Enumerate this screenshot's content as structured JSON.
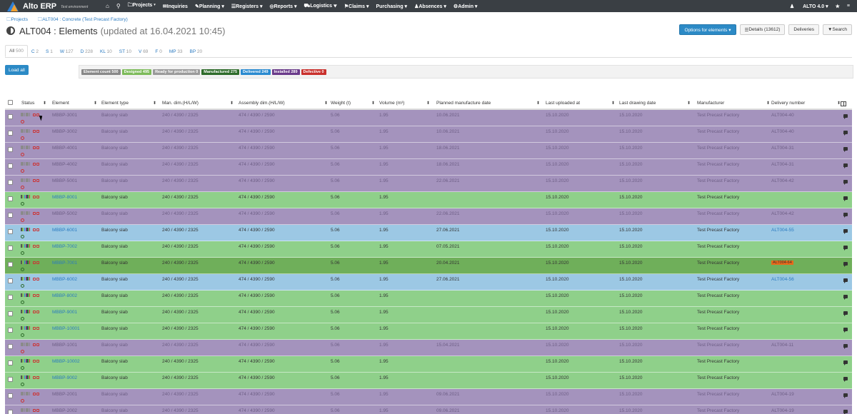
{
  "navbar": {
    "brand": "Alto ERP",
    "env": "Test environment",
    "items": [
      "Projects",
      "Inquiries",
      "Planning",
      "Registers",
      "Reports",
      "Logistics",
      "Claims",
      "Purchasing",
      "Absences",
      "Admin"
    ],
    "user": "ALTO 4.0"
  },
  "breadcrumb": {
    "projects": "Projects",
    "current": "ALT004 : Concrete (Test Precast Factory)"
  },
  "title": {
    "main": "ALT004 : Elements",
    "sub": "(updated at 16.04.2021 10:45)"
  },
  "actions": {
    "options": "Options for elements ▾",
    "details": "Details (13612)",
    "deliveries": "Deliveries",
    "search": "Search"
  },
  "tabs": [
    {
      "label": "All",
      "count": "500"
    },
    {
      "label": "C",
      "count": "2"
    },
    {
      "label": "S",
      "count": "1"
    },
    {
      "label": "W",
      "count": "127"
    },
    {
      "label": "D",
      "count": "228"
    },
    {
      "label": "KL",
      "count": "10"
    },
    {
      "label": "ST",
      "count": "10"
    },
    {
      "label": "V",
      "count": "69"
    },
    {
      "label": "F",
      "count": "0"
    },
    {
      "label": "MP",
      "count": "33"
    },
    {
      "label": "BP",
      "count": "20"
    }
  ],
  "load_all": "Load all",
  "summary_badges": [
    {
      "label": "Element count 500",
      "color": "#888888"
    },
    {
      "label": "Designed 495",
      "color": "#7dbb5a"
    },
    {
      "label": "Ready for production 0",
      "color": "#9a9a9a"
    },
    {
      "label": "Manufactured 275",
      "color": "#2e6b2a"
    },
    {
      "label": "Delivered 249",
      "color": "#2a8ad0"
    },
    {
      "label": "Installed 289",
      "color": "#6a3a8a"
    },
    {
      "label": "Defective 0",
      "color": "#c9302c"
    }
  ],
  "columns": [
    "Status",
    "Element",
    "Element type",
    "Man. dim.(H/L/W)",
    "Assembly dim.(H/L/W)",
    "Weight (t)",
    "Volume (m³)",
    "Planned manufacture date",
    "Last uploaded at",
    "Last drawing date",
    "Manufacturer",
    "Delivery number"
  ],
  "colors": {
    "purple": "#a493bd",
    "green": "#8fd08a",
    "blue": "#9cc8e4",
    "darkgreen": "#6faf5a"
  },
  "rows": [
    {
      "element": "MBBP-3001",
      "type": "Balcony slab",
      "man": "240 / 4390 / 2325",
      "asm": "474 / 4390 / 2590",
      "weight": "5.06",
      "volume": "1.95",
      "planned": "10.06.2021",
      "uploaded": "15.10.2020",
      "drawing": "15.10.2020",
      "manufacturer": "Test Precast Factory",
      "delivery": "ALT004-40",
      "bg": "purple"
    },
    {
      "element": "MBBP-3002",
      "type": "Balcony slab",
      "man": "240 / 4390 / 2325",
      "asm": "474 / 4390 / 2590",
      "weight": "5.06",
      "volume": "1.95",
      "planned": "10.06.2021",
      "uploaded": "15.10.2020",
      "drawing": "15.10.2020",
      "manufacturer": "Test Precast Factory",
      "delivery": "ALT004-40",
      "bg": "purple"
    },
    {
      "element": "MBBP-4001",
      "type": "Balcony slab",
      "man": "240 / 4390 / 2325",
      "asm": "474 / 4390 / 2590",
      "weight": "5.06",
      "volume": "1.95",
      "planned": "18.06.2021",
      "uploaded": "15.10.2020",
      "drawing": "15.10.2020",
      "manufacturer": "Test Precast Factory",
      "delivery": "ALT004-31",
      "bg": "purple"
    },
    {
      "element": "MBBP-4002",
      "type": "Balcony slab",
      "man": "240 / 4390 / 2325",
      "asm": "474 / 4390 / 2590",
      "weight": "5.06",
      "volume": "1.95",
      "planned": "18.06.2021",
      "uploaded": "15.10.2020",
      "drawing": "15.10.2020",
      "manufacturer": "Test Precast Factory",
      "delivery": "ALT004-31",
      "bg": "purple"
    },
    {
      "element": "MBBP-5001",
      "type": "Balcony slab",
      "man": "240 / 4390 / 2325",
      "asm": "474 / 4390 / 2590",
      "weight": "5.06",
      "volume": "1.95",
      "planned": "22.06.2021",
      "uploaded": "15.10.2020",
      "drawing": "15.10.2020",
      "manufacturer": "Test Precast Factory",
      "delivery": "ALT004-42",
      "bg": "purple"
    },
    {
      "element": "MBBP-8001",
      "type": "Balcony slab",
      "man": "240 / 4390 / 2325",
      "asm": "474 / 4390 / 2590",
      "weight": "5.06",
      "volume": "1.95",
      "planned": "",
      "uploaded": "15.10.2020",
      "drawing": "15.10.2020",
      "manufacturer": "Test Precast Factory",
      "delivery": "",
      "bg": "green",
      "link": true
    },
    {
      "element": "MBBP-5002",
      "type": "Balcony slab",
      "man": "240 / 4390 / 2325",
      "asm": "474 / 4390 / 2590",
      "weight": "5.06",
      "volume": "1.95",
      "planned": "22.06.2021",
      "uploaded": "15.10.2020",
      "drawing": "15.10.2020",
      "manufacturer": "Test Precast Factory",
      "delivery": "ALT004-42",
      "bg": "purple"
    },
    {
      "element": "MBBP-6001",
      "type": "Balcony slab",
      "man": "240 / 4390 / 2325",
      "asm": "474 / 4390 / 2590",
      "weight": "5.06",
      "volume": "1.95",
      "planned": "27.06.2021",
      "uploaded": "15.10.2020",
      "drawing": "15.10.2020",
      "manufacturer": "Test Precast Factory",
      "delivery": "ALT004-55",
      "bg": "blue",
      "link": true,
      "dlink": true
    },
    {
      "element": "MBBP-7002",
      "type": "Balcony slab",
      "man": "240 / 4390 / 2325",
      "asm": "474 / 4390 / 2590",
      "weight": "5.06",
      "volume": "1.95",
      "planned": "07.05.2021",
      "uploaded": "15.10.2020",
      "drawing": "15.10.2020",
      "manufacturer": "Test Precast Factory",
      "delivery": "",
      "bg": "green",
      "link": true
    },
    {
      "element": "MBBP-7001",
      "type": "Balcony slab",
      "man": "240 / 4390 / 2325",
      "asm": "474 / 4390 / 2590",
      "weight": "5.06",
      "volume": "1.95",
      "planned": "20.04.2021",
      "uploaded": "15.10.2020",
      "drawing": "15.10.2020",
      "manufacturer": "Test Precast Factory",
      "delivery": "ALT004-64",
      "bg": "darkgreen",
      "link": true,
      "dbadge": true
    },
    {
      "element": "MBBP-6002",
      "type": "Balcony slab",
      "man": "240 / 4390 / 2325",
      "asm": "474 / 4390 / 2590",
      "weight": "5.06",
      "volume": "1.95",
      "planned": "27.06.2021",
      "uploaded": "15.10.2020",
      "drawing": "15.10.2020",
      "manufacturer": "Test Precast Factory",
      "delivery": "ALT004-56",
      "bg": "blue",
      "link": true,
      "dlink": true
    },
    {
      "element": "MBBP-8002",
      "type": "Balcony slab",
      "man": "240 / 4390 / 2325",
      "asm": "474 / 4390 / 2590",
      "weight": "5.06",
      "volume": "1.95",
      "planned": "",
      "uploaded": "15.10.2020",
      "drawing": "15.10.2020",
      "manufacturer": "Test Precast Factory",
      "delivery": "",
      "bg": "green",
      "link": true
    },
    {
      "element": "MBBP-9001",
      "type": "Balcony slab",
      "man": "240 / 4390 / 2325",
      "asm": "474 / 4390 / 2590",
      "weight": "5.06",
      "volume": "1.95",
      "planned": "",
      "uploaded": "15.10.2020",
      "drawing": "15.10.2020",
      "manufacturer": "Test Precast Factory",
      "delivery": "",
      "bg": "green",
      "link": true
    },
    {
      "element": "MBBP-10001",
      "type": "Balcony slab",
      "man": "240 / 4390 / 2325",
      "asm": "474 / 4390 / 2590",
      "weight": "5.06",
      "volume": "1.95",
      "planned": "",
      "uploaded": "15.10.2020",
      "drawing": "15.10.2020",
      "manufacturer": "Test Precast Factory",
      "delivery": "",
      "bg": "green",
      "link": true
    },
    {
      "element": "MBBP-1001",
      "type": "Balcony slab",
      "man": "240 / 4390 / 2325",
      "asm": "474 / 4390 / 2590",
      "weight": "5.06",
      "volume": "1.95",
      "planned": "15.04.2021",
      "uploaded": "15.10.2020",
      "drawing": "15.10.2020",
      "manufacturer": "Test Precast Factory",
      "delivery": "ALT004-11",
      "bg": "purple"
    },
    {
      "element": "MBBP-10002",
      "type": "Balcony slab",
      "man": "240 / 4390 / 2325",
      "asm": "474 / 4390 / 2590",
      "weight": "5.06",
      "volume": "1.95",
      "planned": "",
      "uploaded": "15.10.2020",
      "drawing": "15.10.2020",
      "manufacturer": "Test Precast Factory",
      "delivery": "",
      "bg": "green",
      "link": true
    },
    {
      "element": "MBBP-9002",
      "type": "Balcony slab",
      "man": "240 / 4390 / 2325",
      "asm": "474 / 4390 / 2590",
      "weight": "5.06",
      "volume": "1.95",
      "planned": "",
      "uploaded": "15.10.2020",
      "drawing": "15.10.2020",
      "manufacturer": "Test Precast Factory",
      "delivery": "",
      "bg": "green",
      "link": true
    },
    {
      "element": "MBBP-2001",
      "type": "Balcony slab",
      "man": "240 / 4390 / 2325",
      "asm": "474 / 4390 / 2590",
      "weight": "5.06",
      "volume": "1.95",
      "planned": "09.06.2021",
      "uploaded": "15.10.2020",
      "drawing": "15.10.2020",
      "manufacturer": "Test Precast Factory",
      "delivery": "ALT004-19",
      "bg": "purple"
    },
    {
      "element": "MBBP-2002",
      "type": "Balcony slab",
      "man": "240 / 4390 / 2325",
      "asm": "474 / 4390 / 2590",
      "weight": "5.06",
      "volume": "1.95",
      "planned": "09.06.2021",
      "uploaded": "15.10.2020",
      "drawing": "15.10.2020",
      "manufacturer": "Test Precast Factory",
      "delivery": "ALT004-19",
      "bg": "purple"
    }
  ]
}
